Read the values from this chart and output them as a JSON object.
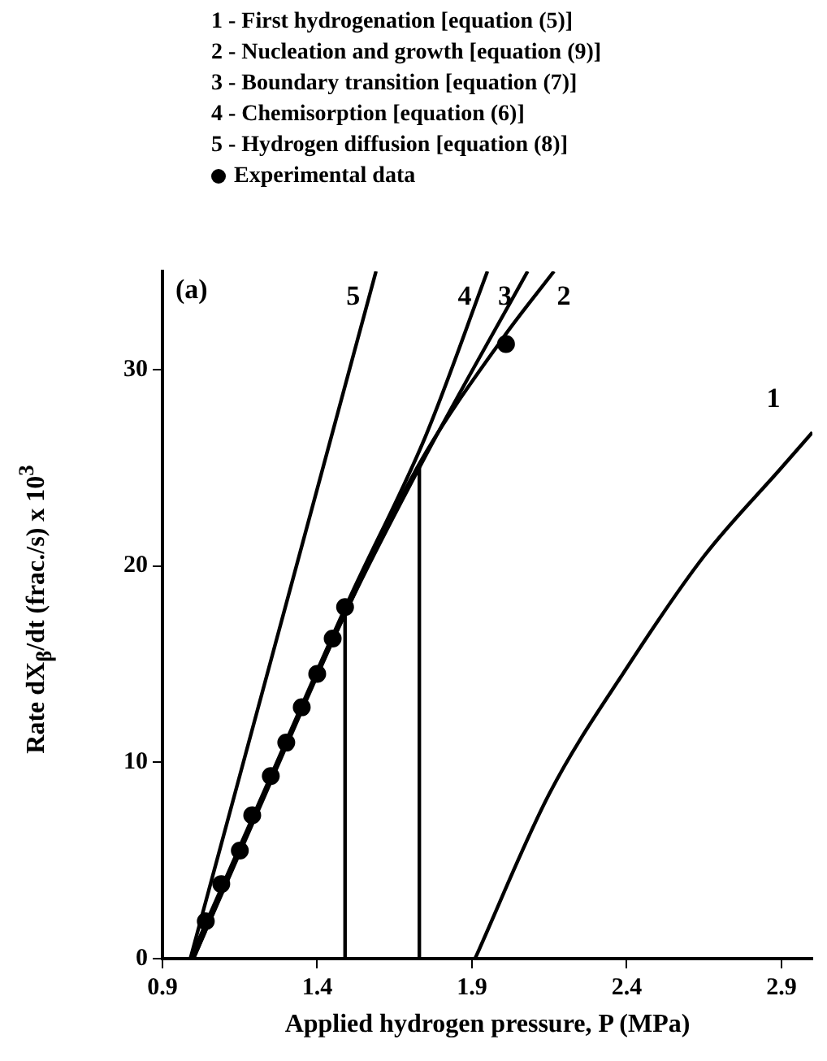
{
  "chart_data": {
    "type": "line",
    "title": "(a)",
    "xlabel": "Applied hydrogen pressure, P (MPa)",
    "ylabel": "Rate dX$_{β}$/dt (frac./s) x 10$^{3}$",
    "xlim": [
      0.9,
      3.0
    ],
    "xticks": [
      0.9,
      1.4,
      1.9,
      2.4,
      2.9
    ],
    "ylim": [
      0,
      35
    ],
    "yticks": [
      0,
      10,
      20,
      30
    ],
    "grid": false,
    "legend": "top",
    "marker": "none",
    "line_style": "solid",
    "annotations": [
      "1 - First hydrogenation [equation (5)]",
      "2 - Nucleation and growth [equation (9)]",
      "3 - Boundary transition [equation (7)]",
      "4 - Chemisorption [equation (6)]",
      "5 - Hydrogen diffusion [equation (8)]"
    ],
    "series": [
      {
        "name": "1",
        "color": "#000000",
        "x": [
          1.91,
          2.15,
          2.4,
          2.65,
          2.9,
          3.0
        ],
        "values": [
          0,
          8.4,
          14.8,
          20.5,
          25,
          26.8
        ]
      },
      {
        "name": "2",
        "color": "#000000",
        "x": [
          1.0,
          1.2,
          1.5,
          1.73,
          2.0,
          2.165
        ],
        "values": [
          0,
          7.2,
          17.9,
          25.2,
          31.6,
          35
        ]
      },
      {
        "name": "3",
        "color": "#000000",
        "x": [
          1.0,
          1.2,
          1.5,
          1.75,
          2.08
        ],
        "values": [
          0,
          7.3,
          17.9,
          25.6,
          35
        ]
      },
      {
        "name": "4",
        "color": "#000000",
        "x": [
          0.99,
          1.2,
          1.5,
          1.75,
          1.95
        ],
        "values": [
          0,
          7.5,
          18.2,
          26.6,
          35
        ]
      },
      {
        "name": "5",
        "color": "#000000",
        "x": [
          0.99,
          1.59
        ],
        "values": [
          0,
          35
        ]
      },
      {
        "name": "Experimental data",
        "type": "scatter",
        "marker": "circle",
        "color": "#000000",
        "x": [
          1.04,
          1.09,
          1.15,
          1.19,
          1.25,
          1.3,
          1.35,
          1.4,
          1.45,
          1.49,
          2.01
        ],
        "values": [
          1.9,
          3.8,
          5.5,
          7.3,
          9.3,
          11,
          12.8,
          14.5,
          16.3,
          17.9,
          31.3
        ]
      },
      {
        "color": "#000000",
        "x": [
          1.49,
          1.49
        ],
        "values": [
          0,
          17.9
        ]
      },
      {
        "color": "#000000",
        "x": [
          1.73,
          1.73
        ],
        "values": [
          0,
          25.2
        ]
      }
    ]
  }
}
